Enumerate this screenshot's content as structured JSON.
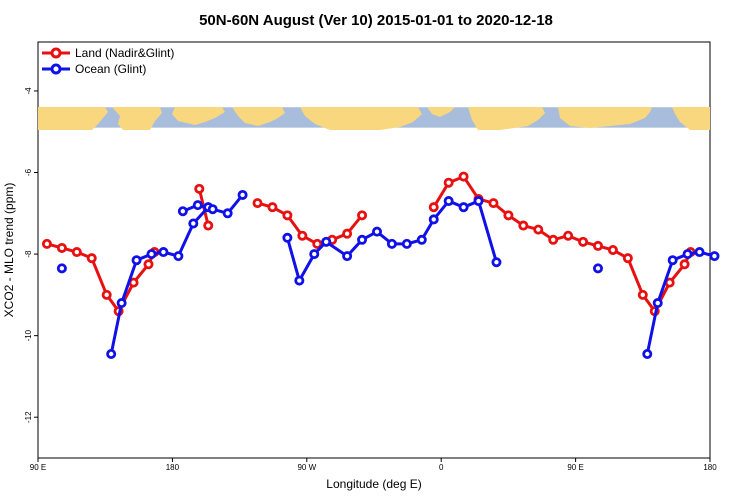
{
  "chart_data": {
    "type": "line",
    "title": "50N-60N August (Ver 10)   2015-01-01 to 2020-12-18",
    "xlabel": "Longitude (deg E)",
    "ylabel": "XCO2 - MLO trend (ppm)",
    "x_ticks": [
      {
        "value": 0,
        "label": "90 E"
      },
      {
        "value": 90,
        "label": "180"
      },
      {
        "value": 180,
        "label": "90 W"
      },
      {
        "value": 270,
        "label": "0"
      },
      {
        "value": 360,
        "label": "90 E"
      },
      {
        "value": 450,
        "label": "180"
      }
    ],
    "y_ticks": [
      {
        "value": -4,
        "label": "-4"
      },
      {
        "value": -6,
        "label": "-6"
      },
      {
        "value": -8,
        "label": "-8"
      },
      {
        "value": -10,
        "label": "-10"
      },
      {
        "value": -12,
        "label": "-12"
      }
    ],
    "xlim": [
      0,
      450
    ],
    "ylim": [
      -13.0,
      -2.8
    ],
    "map_strip": {
      "ymin": -4.9,
      "ymax": -4.4,
      "ocean_color": "#a8bcdc",
      "land_color": "#f9d77e"
    },
    "series": [
      {
        "name": "Land (Nadir&Glint)",
        "color": "#e81010",
        "segments": [
          [
            [
              6,
              -7.75
            ],
            [
              16,
              -7.85
            ],
            [
              26,
              -7.95
            ],
            [
              36,
              -8.1
            ],
            [
              46,
              -9.0
            ],
            [
              54,
              -9.4
            ],
            [
              64,
              -8.7
            ],
            [
              74,
              -8.25
            ],
            [
              78,
              -7.95
            ]
          ],
          [
            [
              108,
              -6.4
            ],
            [
              114,
              -7.3
            ]
          ],
          [
            [
              147,
              -6.75
            ],
            [
              157,
              -6.85
            ],
            [
              167,
              -7.05
            ],
            [
              177,
              -7.55
            ],
            [
              187,
              -7.75
            ],
            [
              197,
              -7.65
            ],
            [
              207,
              -7.5
            ],
            [
              217,
              -7.05
            ]
          ],
          [
            [
              265,
              -6.85
            ],
            [
              275,
              -6.25
            ],
            [
              285,
              -6.1
            ],
            [
              295,
              -6.65
            ],
            [
              305,
              -6.75
            ],
            [
              315,
              -7.05
            ],
            [
              325,
              -7.3
            ],
            [
              335,
              -7.4
            ],
            [
              345,
              -7.65
            ],
            [
              355,
              -7.55
            ],
            [
              365,
              -7.7
            ],
            [
              375,
              -7.8
            ],
            [
              385,
              -7.9
            ],
            [
              395,
              -8.1
            ],
            [
              405,
              -9.0
            ],
            [
              413,
              -9.4
            ],
            [
              423,
              -8.7
            ],
            [
              433,
              -8.25
            ],
            [
              437,
              -7.95
            ]
          ]
        ]
      },
      {
        "name": "Ocean (Glint)",
        "color": "#1010e8",
        "segments": [
          [
            [
              16,
              -8.35
            ]
          ],
          [
            [
              49,
              -10.45
            ],
            [
              56,
              -9.2
            ],
            [
              66,
              -8.15
            ],
            [
              76,
              -8.0
            ],
            [
              84,
              -7.95
            ],
            [
              94,
              -8.05
            ],
            [
              104,
              -7.25
            ],
            [
              114,
              -6.85
            ]
          ],
          [
            [
              97,
              -6.95
            ],
            [
              107,
              -6.8
            ],
            [
              117,
              -6.9
            ],
            [
              127,
              -7.0
            ],
            [
              137,
              -6.55
            ]
          ],
          [
            [
              167,
              -7.6
            ],
            [
              175,
              -8.65
            ],
            [
              185,
              -8.0
            ],
            [
              193,
              -7.7
            ],
            [
              207,
              -8.05
            ],
            [
              217,
              -7.65
            ],
            [
              227,
              -7.45
            ],
            [
              237,
              -7.75
            ],
            [
              247,
              -7.75
            ],
            [
              257,
              -7.65
            ],
            [
              265,
              -7.15
            ],
            [
              275,
              -6.7
            ],
            [
              285,
              -6.85
            ],
            [
              295,
              -6.7
            ],
            [
              307,
              -8.2
            ]
          ],
          [
            [
              375,
              -8.35
            ]
          ],
          [
            [
              408,
              -10.45
            ],
            [
              415,
              -9.2
            ],
            [
              425,
              -8.15
            ],
            [
              435,
              -8.0
            ],
            [
              443,
              -7.95
            ],
            [
              453,
              -8.05
            ]
          ]
        ]
      }
    ]
  }
}
